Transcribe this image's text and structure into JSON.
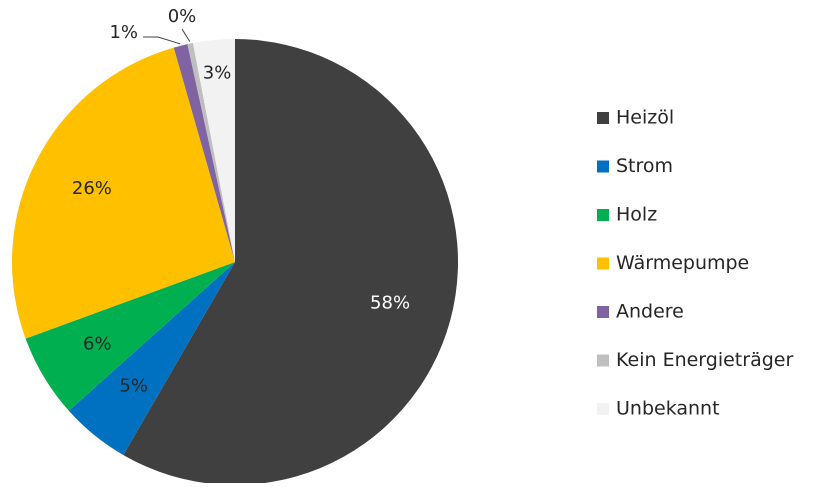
{
  "chart_data": {
    "type": "pie",
    "categories": [
      "Heizöl",
      "Strom",
      "Holz",
      "Wärmepumpe",
      "Andere",
      "Kein Energieträger",
      "Unbekannt"
    ],
    "values": [
      58,
      5,
      6,
      26,
      1,
      0.4,
      3
    ],
    "value_labels": [
      "58%",
      "5%",
      "6%",
      "26%",
      "1%",
      "0%",
      "3%"
    ],
    "colors": [
      "#404040",
      "#0070c0",
      "#00b050",
      "#ffc000",
      "#8064a2",
      "#bfbfbf",
      "#f2f2f2"
    ],
    "legend": "right"
  }
}
